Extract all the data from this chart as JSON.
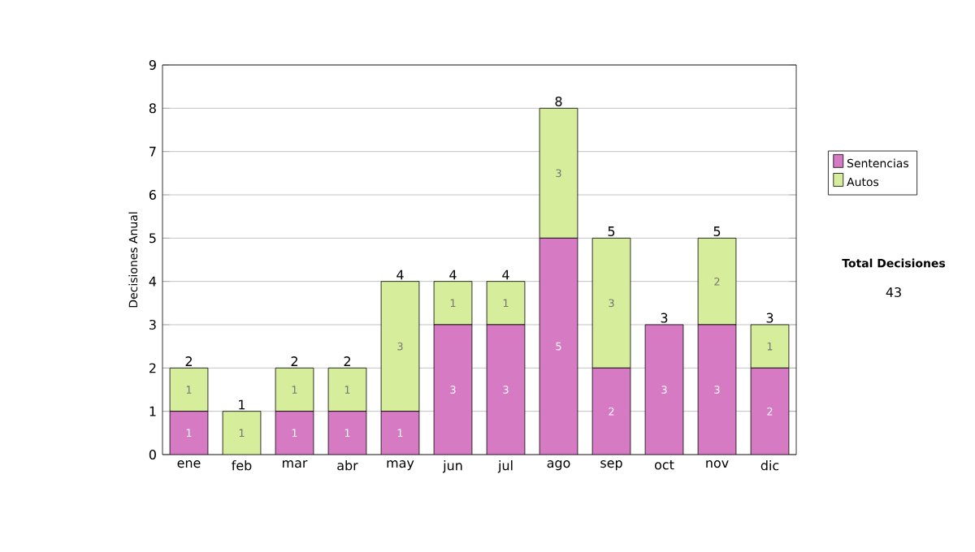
{
  "chart_data": {
    "type": "bar",
    "stacked": true,
    "ylabel": "Decisiones Anual",
    "categories": [
      "ene",
      "feb",
      "mar",
      "abr",
      "may",
      "jun",
      "jul",
      "ago",
      "sep",
      "oct",
      "nov",
      "dic"
    ],
    "series": [
      {
        "name": "Sentencias",
        "color": "#d67ac4",
        "values": [
          1,
          0,
          1,
          1,
          1,
          3,
          3,
          5,
          2,
          3,
          3,
          2
        ],
        "value_labels": [
          "1",
          null,
          "1",
          "1",
          "1",
          "3",
          "3",
          "5",
          "2",
          "3",
          "3",
          "2"
        ]
      },
      {
        "name": "Autos",
        "color": "#d6ee9c",
        "values": [
          1,
          1,
          1,
          1,
          3,
          1,
          1,
          3,
          3,
          0,
          2,
          1
        ],
        "value_labels": [
          "1",
          "1",
          "1",
          "1",
          "3",
          "1",
          "1",
          "3",
          "3",
          null,
          "2",
          "1"
        ]
      }
    ],
    "totals": [
      "2",
      "1",
      "2",
      "2",
      "4",
      "4",
      "4",
      "8",
      "5",
      "3",
      "5",
      "3"
    ],
    "ylim": [
      0,
      9
    ],
    "yticks": [
      0,
      1,
      2,
      3,
      4,
      5,
      6,
      7,
      8,
      9
    ],
    "grid": "y",
    "legend": "right",
    "annotations": [
      "Total Decisiones",
      "43"
    ]
  }
}
